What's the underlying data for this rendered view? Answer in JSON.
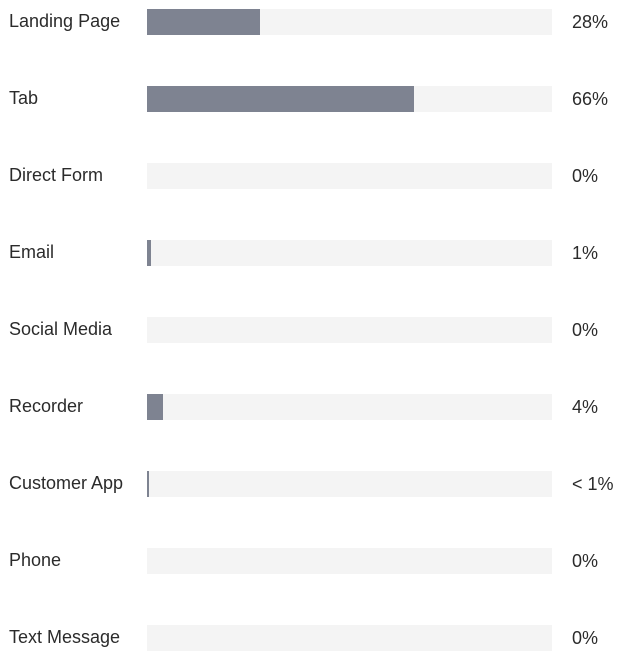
{
  "chart_data": {
    "type": "bar",
    "orientation": "horizontal",
    "categories": [
      "Landing Page",
      "Tab",
      "Direct Form",
      "Email",
      "Social Media",
      "Recorder",
      "Customer App",
      "Phone",
      "Text Message"
    ],
    "values": [
      28,
      66,
      0,
      1,
      0,
      4,
      0.5,
      0,
      0
    ],
    "value_labels": [
      "28%",
      "66%",
      "0%",
      "1%",
      "0%",
      "4%",
      "< 1%",
      "0%",
      "0%"
    ],
    "xlim": [
      0,
      100
    ],
    "grid": false,
    "legend": "none"
  },
  "colors": {
    "bar": "#7e8391",
    "track": "#f4f4f4",
    "text": "#2b2b2b"
  }
}
